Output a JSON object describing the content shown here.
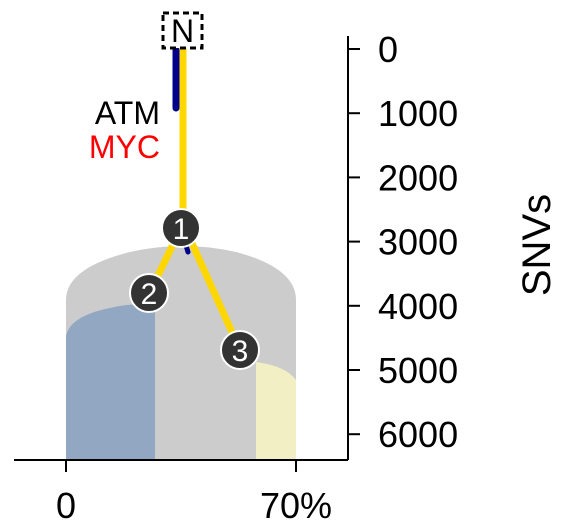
{
  "root": {
    "label": "N"
  },
  "genes": [
    {
      "name": "ATM",
      "color": "#000000",
      "branch_color": "#00008b"
    },
    {
      "name": "MYC",
      "color": "#ff0000",
      "branch_color": "#ffd700"
    }
  ],
  "nodes": [
    {
      "id": "1",
      "label": "1",
      "snvs": 2900
    },
    {
      "id": "2",
      "label": "2",
      "snvs": 3900
    },
    {
      "id": "3",
      "label": "3",
      "snvs": 4800
    }
  ],
  "snv_axis": {
    "title": "SNVs",
    "ticks": [
      {
        "value": 0,
        "label": "0"
      },
      {
        "value": 1000,
        "label": "1000"
      },
      {
        "value": 2000,
        "label": "2000"
      },
      {
        "value": 3000,
        "label": "3000"
      },
      {
        "value": 4000,
        "label": "4000"
      },
      {
        "value": 5000,
        "label": "5000"
      },
      {
        "value": 6000,
        "label": "6000"
      }
    ],
    "range": [
      0,
      6400
    ]
  },
  "fraction_axis": {
    "ticks": [
      {
        "value": 0,
        "label": "0"
      },
      {
        "value": 70,
        "label": "70%"
      }
    ]
  },
  "colors": {
    "trunk": "#ffd700",
    "atm_branch": "#00008b",
    "clone1_fill": "#cccccc",
    "clone2_fill": "#92a8c2",
    "clone3_fill": "#f2efc4",
    "node_fill": "#333333",
    "axis": "#000000"
  }
}
